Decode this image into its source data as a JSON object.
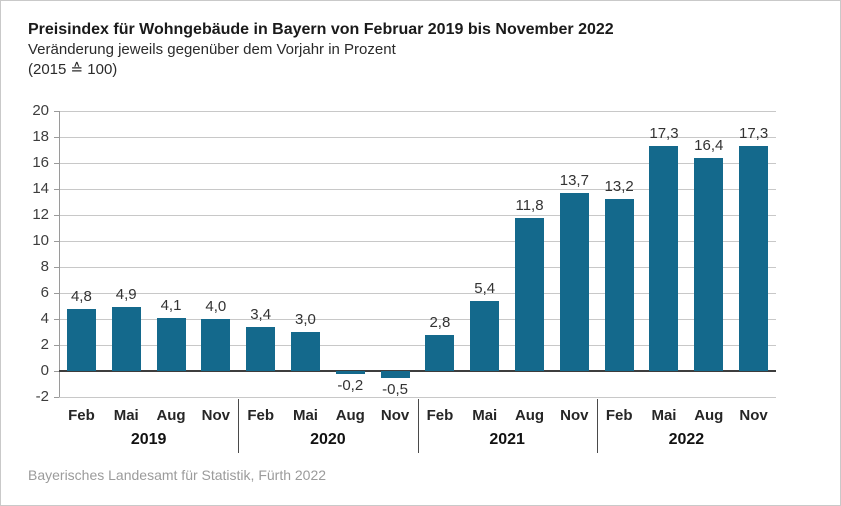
{
  "header": {
    "title": "Preisindex für Wohngebäude in Bayern von Februar 2019 bis November 2022",
    "subtitle": "Veränderung jeweils gegenüber dem Vorjahr in Prozent",
    "base_note": "(2015 ≙ 100)"
  },
  "footer": {
    "source": "Bayerisches Landesamt für Statistik, Fürth 2022"
  },
  "colors": {
    "bar": "#14698c",
    "grid": "#c8c8c8",
    "zero_line": "#3d3d3d",
    "axis": "#9a9a9a",
    "separator": "#4a4a4a"
  },
  "chart_data": {
    "type": "bar",
    "title": "Preisindex für Wohngebäude in Bayern von Februar 2019 bis November 2022",
    "subtitle": "Veränderung jeweils gegenüber dem Vorjahr in Prozent (2015 ≙ 100)",
    "categories": [
      "Feb 2019",
      "Mai 2019",
      "Aug 2019",
      "Nov 2019",
      "Feb 2020",
      "Mai 2020",
      "Aug 2020",
      "Nov 2020",
      "Feb 2021",
      "Mai 2021",
      "Aug 2021",
      "Nov 2021",
      "Feb 2022",
      "Mai 2022",
      "Aug 2022",
      "Nov 2022"
    ],
    "values": [
      4.8,
      4.9,
      4.1,
      4.0,
      3.4,
      3.0,
      -0.2,
      -0.5,
      2.8,
      5.4,
      11.8,
      13.7,
      13.2,
      17.3,
      16.4,
      17.3
    ],
    "value_labels": [
      "4,8",
      "4,9",
      "4,1",
      "4,0",
      "3,4",
      "3,0",
      "-0,2",
      "-0,5",
      "2,8",
      "5,4",
      "11,8",
      "13,7",
      "13,2",
      "17,3",
      "16,4",
      "17,3"
    ],
    "months": [
      "Feb",
      "Mai",
      "Aug",
      "Nov"
    ],
    "years": [
      "2019",
      "2020",
      "2021",
      "2022"
    ],
    "xlabel": "",
    "ylabel": "",
    "ylim": [
      -2,
      20
    ],
    "yticks": [
      20,
      18,
      16,
      14,
      12,
      10,
      8,
      6,
      4,
      2,
      0,
      -2
    ],
    "grid": true,
    "legend": "none",
    "source": "Bayerisches Landesamt für Statistik, Fürth 2022"
  }
}
